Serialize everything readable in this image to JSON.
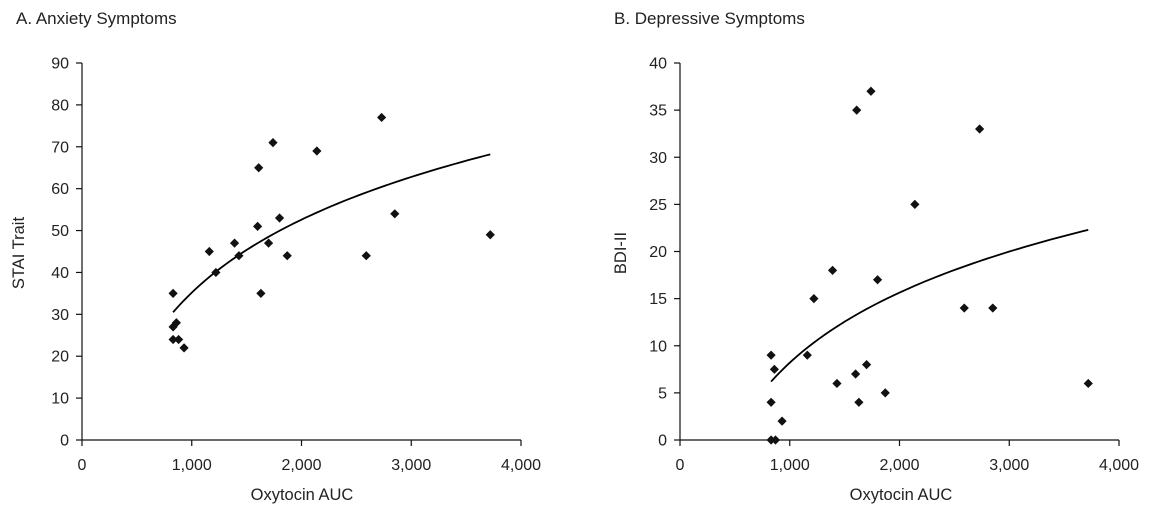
{
  "chart_data": [
    {
      "type": "scatter",
      "title": "A. Anxiety Symptoms",
      "xlabel": "Oxytocin AUC",
      "ylabel": "STAI Trait",
      "xlim": [
        0,
        4000
      ],
      "ylim": [
        0,
        90
      ],
      "xticks": [
        0,
        1000,
        2000,
        3000,
        4000
      ],
      "xtick_labels": [
        "0",
        "1,000",
        "2,000",
        "3,000",
        "4,000"
      ],
      "yticks": [
        0,
        10,
        20,
        30,
        40,
        50,
        60,
        70,
        80,
        90
      ],
      "ytick_labels": [
        "0",
        "10",
        "20",
        "30",
        "40",
        "50",
        "60",
        "70",
        "80",
        "90"
      ],
      "grid": false,
      "points": [
        {
          "x": 830,
          "y": 35
        },
        {
          "x": 830,
          "y": 27
        },
        {
          "x": 830,
          "y": 24
        },
        {
          "x": 860,
          "y": 28
        },
        {
          "x": 880,
          "y": 24
        },
        {
          "x": 930,
          "y": 22
        },
        {
          "x": 1160,
          "y": 45
        },
        {
          "x": 1220,
          "y": 40
        },
        {
          "x": 1390,
          "y": 47
        },
        {
          "x": 1430,
          "y": 44
        },
        {
          "x": 1600,
          "y": 51
        },
        {
          "x": 1610,
          "y": 65
        },
        {
          "x": 1630,
          "y": 35
        },
        {
          "x": 1700,
          "y": 47
        },
        {
          "x": 1740,
          "y": 71
        },
        {
          "x": 1800,
          "y": 53
        },
        {
          "x": 1870,
          "y": 44
        },
        {
          "x": 2140,
          "y": 69
        },
        {
          "x": 2590,
          "y": 44
        },
        {
          "x": 2730,
          "y": 77
        },
        {
          "x": 2850,
          "y": 54
        },
        {
          "x": 3720,
          "y": 49
        }
      ],
      "trendline": {
        "type": "logarithmic",
        "x_range": [
          830,
          3720
        ],
        "y_at_start": 30.5,
        "y_at_end": 68.2
      }
    },
    {
      "type": "scatter",
      "title": "B. Depressive Symptoms",
      "xlabel": "Oxytocin AUC",
      "ylabel": "BDI-II",
      "xlim": [
        0,
        4000
      ],
      "ylim": [
        0,
        40
      ],
      "xticks": [
        0,
        1000,
        2000,
        3000,
        4000
      ],
      "xtick_labels": [
        "0",
        "1,000",
        "2,000",
        "3,000",
        "4,000"
      ],
      "yticks": [
        0,
        5,
        10,
        15,
        20,
        25,
        30,
        35,
        40
      ],
      "ytick_labels": [
        "0",
        "5",
        "10",
        "15",
        "20",
        "25",
        "30",
        "35",
        "40"
      ],
      "grid": false,
      "points": [
        {
          "x": 830,
          "y": 9
        },
        {
          "x": 830,
          "y": 4
        },
        {
          "x": 830,
          "y": 0
        },
        {
          "x": 860,
          "y": 7.5
        },
        {
          "x": 870,
          "y": 0
        },
        {
          "x": 930,
          "y": 2
        },
        {
          "x": 1160,
          "y": 9
        },
        {
          "x": 1220,
          "y": 15
        },
        {
          "x": 1390,
          "y": 18
        },
        {
          "x": 1430,
          "y": 6
        },
        {
          "x": 1600,
          "y": 7
        },
        {
          "x": 1610,
          "y": 35
        },
        {
          "x": 1630,
          "y": 4
        },
        {
          "x": 1700,
          "y": 8
        },
        {
          "x": 1740,
          "y": 37
        },
        {
          "x": 1800,
          "y": 17
        },
        {
          "x": 1870,
          "y": 5
        },
        {
          "x": 2140,
          "y": 25
        },
        {
          "x": 2590,
          "y": 14
        },
        {
          "x": 2730,
          "y": 33
        },
        {
          "x": 2850,
          "y": 14
        },
        {
          "x": 3720,
          "y": 6
        }
      ],
      "trendline": {
        "type": "logarithmic",
        "x_range": [
          830,
          3720
        ],
        "y_at_start": 6.2,
        "y_at_end": 22.3
      }
    }
  ]
}
